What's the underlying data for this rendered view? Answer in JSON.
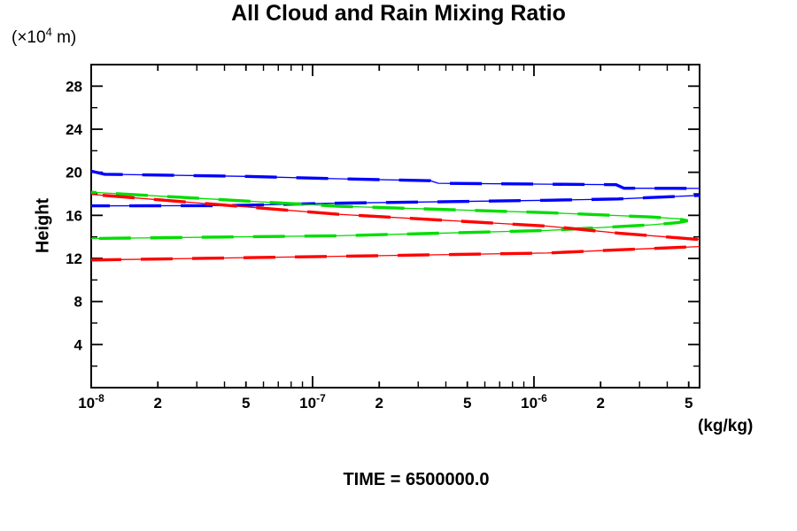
{
  "title": "All Cloud and Rain Mixing Ratio",
  "y_unit": {
    "prefix": "(×10",
    "sup": "4",
    "suffix": " m)"
  },
  "footer": {
    "time_label": "TIME = 6500000.0"
  },
  "colors": {
    "axis": "#000000",
    "blue": "#0000ff",
    "green": "#00dd00",
    "red": "#ff0000"
  },
  "chart_data": {
    "type": "line",
    "title": "All Cloud and Rain Mixing Ratio",
    "xlabel": "(kg/kg)",
    "ylabel": "Height",
    "y_unit_label": "(×10^4 m)",
    "x_scale": "log",
    "xlim": [
      1e-08,
      5.6e-06
    ],
    "ylim": [
      0,
      30
    ],
    "grid": false,
    "legend": "none",
    "x_major_ticks": [
      1e-08,
      2e-08,
      5e-08,
      1e-07,
      2e-07,
      5e-07,
      1e-06,
      2e-06,
      5e-06
    ],
    "x_tick_labels": [
      "10^-8",
      "2",
      "5",
      "10^-7",
      "2",
      "5",
      "10^-6",
      "2",
      "5"
    ],
    "x_minor_ticks": [
      3e-08,
      4e-08,
      6e-08,
      7e-08,
      8e-08,
      9e-08,
      3e-07,
      4e-07,
      6e-07,
      7e-07,
      8e-07,
      9e-07,
      3e-06,
      4e-06
    ],
    "y_major_ticks": [
      4,
      8,
      12,
      16,
      20,
      24,
      28
    ],
    "y_minor_ticks": [
      2,
      6,
      10,
      14,
      18,
      22,
      26,
      30
    ],
    "series": [
      {
        "name": "blue-upper-branch",
        "color": "#0000ff",
        "points": [
          [
            1e-08,
            20.1
          ],
          [
            1.15e-08,
            19.82
          ],
          [
            5e-08,
            19.62
          ],
          [
            1.3e-07,
            19.4
          ],
          [
            3.4e-07,
            19.22
          ],
          [
            3.7e-07,
            18.98
          ],
          [
            1.15e-06,
            18.9
          ],
          [
            2.35e-06,
            18.85
          ],
          [
            2.55e-06,
            18.52
          ],
          [
            5.6e-06,
            18.5
          ]
        ]
      },
      {
        "name": "blue-lower-branch",
        "color": "#0000ff",
        "points": [
          [
            1e-08,
            16.88
          ],
          [
            4e-08,
            16.9
          ],
          [
            1.2e-07,
            17.12
          ],
          [
            1.15e-06,
            17.4
          ],
          [
            2.4e-06,
            17.52
          ],
          [
            5.6e-06,
            17.85
          ]
        ]
      },
      {
        "name": "green-loop",
        "color": "#00dd00",
        "points": [
          [
            1e-08,
            18.15
          ],
          [
            1.3e-07,
            16.85
          ],
          [
            1.15e-06,
            16.25
          ],
          [
            3.4e-06,
            15.85
          ],
          [
            4.5e-06,
            15.68
          ],
          [
            4.95e-06,
            15.5
          ],
          [
            4.5e-06,
            15.33
          ],
          [
            3.4e-06,
            15.12
          ],
          [
            1.15e-06,
            14.6
          ],
          [
            1.3e-07,
            14.1
          ],
          [
            1e-08,
            13.85
          ]
        ]
      },
      {
        "name": "red-upper-branch",
        "color": "#ff0000",
        "points": [
          [
            1e-08,
            17.95
          ],
          [
            1.3e-07,
            16.1
          ],
          [
            1.15e-06,
            15.0
          ],
          [
            2.4e-06,
            14.35
          ],
          [
            5.6e-06,
            13.75
          ]
        ]
      },
      {
        "name": "red-lower-branch",
        "color": "#ff0000",
        "points": [
          [
            1e-08,
            11.85
          ],
          [
            1.3e-07,
            12.2
          ],
          [
            1.15e-06,
            12.5
          ],
          [
            2.4e-06,
            12.8
          ],
          [
            5.6e-06,
            13.1
          ]
        ]
      }
    ]
  }
}
